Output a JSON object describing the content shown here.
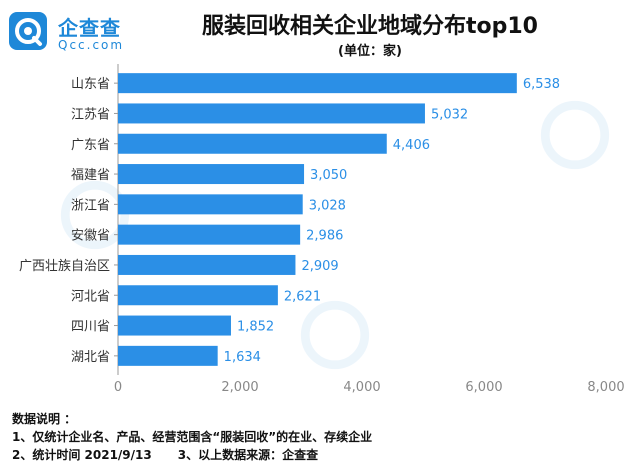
{
  "logo": {
    "name": "企查查",
    "sub": "Qcc.com"
  },
  "notes": {
    "heading": "数据说明 ：",
    "line1": "1、仅统计企业名、产品、经营范围含“服装回收”的在业、存续企业",
    "line2": "2、统计时间 2021/9/13",
    "line3": "3、以上数据来源：企查查"
  },
  "colors": {
    "bar": "#2b8fe6",
    "label": "#2b8fe6",
    "axis": "#999999",
    "grid": "#e6e6e6"
  },
  "chart_data": {
    "type": "bar",
    "orientation": "horizontal",
    "title": "服装回收相关企业地域分布top10",
    "subtitle": "(单位：家)",
    "categories": [
      "山东省",
      "江苏省",
      "广东省",
      "福建省",
      "浙江省",
      "安徽省",
      "广西壮族自治区",
      "河北省",
      "四川省",
      "湖北省"
    ],
    "values": [
      6538,
      5032,
      4406,
      3050,
      3028,
      2986,
      2909,
      2621,
      1852,
      1634
    ],
    "value_labels": [
      "6,538",
      "5,032",
      "4,406",
      "3,050",
      "3,028",
      "2,986",
      "2,909",
      "2,621",
      "1,852",
      "1,634"
    ],
    "xlim": [
      0,
      8000
    ],
    "xticks": [
      0,
      2000,
      4000,
      6000,
      8000
    ],
    "xtick_labels": [
      "0",
      "2,000",
      "4,000",
      "6,000",
      "8,000"
    ],
    "grid": false
  }
}
